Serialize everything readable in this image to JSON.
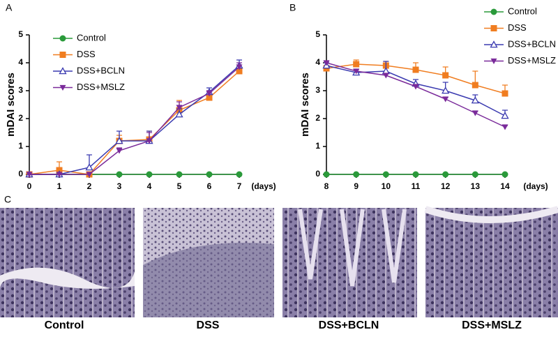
{
  "panel_labels": [
    "A",
    "B",
    "C"
  ],
  "chart_data": [
    {
      "type": "line",
      "y_label": "mDAI scores",
      "x_label": "(days)",
      "x": [
        0,
        1,
        2,
        3,
        4,
        5,
        6,
        7
      ],
      "xlim": [
        0,
        7
      ],
      "xticks": [
        0,
        1,
        2,
        3,
        4,
        5,
        6,
        7
      ],
      "ylim": [
        0,
        5
      ],
      "yticks": [
        0,
        1,
        2,
        3,
        4,
        5
      ],
      "legend": "top-left",
      "series": [
        {
          "name": "Control",
          "color": "#2a9a3a",
          "marker": "circle",
          "values": [
            0,
            0,
            0,
            0,
            0,
            0,
            0,
            0
          ],
          "errors": [
            0,
            0,
            0,
            0,
            0,
            0,
            0,
            0
          ]
        },
        {
          "name": "DSS",
          "color": "#f07d20",
          "marker": "square",
          "values": [
            0,
            0.15,
            0,
            1.2,
            1.25,
            2.3,
            2.75,
            3.7
          ],
          "errors": [
            0,
            0.3,
            0,
            0.2,
            0.3,
            0.35,
            0.1,
            0.1
          ]
        },
        {
          "name": "DSS+BCLN",
          "color": "#3a3ab0",
          "marker": "triangle-open",
          "values": [
            0,
            0,
            0.25,
            1.2,
            1.2,
            2.15,
            2.95,
            3.9
          ],
          "errors": [
            0,
            0,
            0.45,
            0.35,
            0.35,
            0.2,
            0.15,
            0.2
          ]
        },
        {
          "name": "DSS+MSLZ",
          "color": "#7a2a9a",
          "marker": "triangle-down",
          "values": [
            0,
            0,
            0,
            0.85,
            1.2,
            2.4,
            2.9,
            3.85
          ],
          "errors": [
            0,
            0,
            0,
            0.1,
            0.3,
            0.2,
            0.1,
            0.15
          ]
        }
      ]
    },
    {
      "type": "line",
      "y_label": "mDAI scores",
      "x_label": "(days)",
      "x": [
        8,
        9,
        10,
        11,
        12,
        13,
        14
      ],
      "xlim": [
        8,
        14
      ],
      "xticks": [
        8,
        9,
        10,
        11,
        12,
        13,
        14
      ],
      "ylim": [
        0,
        5
      ],
      "yticks": [
        0,
        1,
        2,
        3,
        4,
        5
      ],
      "legend": "top-right",
      "series": [
        {
          "name": "Control",
          "color": "#2a9a3a",
          "marker": "circle",
          "values": [
            0,
            0,
            0,
            0,
            0,
            0,
            0
          ],
          "errors": [
            0,
            0,
            0,
            0,
            0,
            0,
            0
          ]
        },
        {
          "name": "DSS",
          "color": "#f07d20",
          "marker": "square",
          "values": [
            3.8,
            3.95,
            3.9,
            3.75,
            3.55,
            3.2,
            2.9
          ],
          "errors": [
            0.1,
            0.15,
            0.15,
            0.25,
            0.3,
            0.5,
            0.3
          ]
        },
        {
          "name": "DSS+BCLN",
          "color": "#3a3ab0",
          "marker": "triangle-open",
          "values": [
            3.9,
            3.65,
            3.7,
            3.25,
            3.0,
            2.65,
            2.1
          ],
          "errors": [
            0.1,
            0.1,
            0.35,
            0.15,
            0.3,
            0.2,
            0.2
          ]
        },
        {
          "name": "DSS+MSLZ",
          "color": "#7a2a9a",
          "marker": "triangle-down",
          "values": [
            4.0,
            3.7,
            3.55,
            3.15,
            2.7,
            2.2,
            1.7
          ],
          "errors": [
            0.05,
            0.05,
            0.05,
            0.05,
            0.05,
            0.05,
            0.05
          ]
        }
      ]
    }
  ],
  "images": {
    "captions": [
      "Control",
      "DSS",
      "DSS+BCLN",
      "DSS+MSLZ"
    ]
  }
}
